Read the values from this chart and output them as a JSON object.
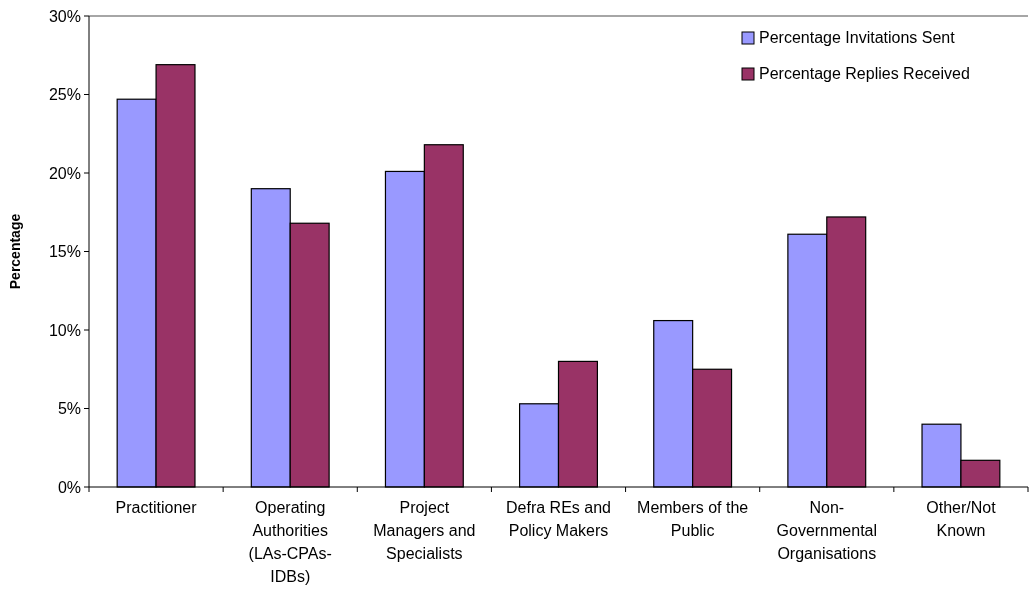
{
  "chart_data": {
    "type": "bar",
    "ylabel": "Percentage",
    "categories": [
      "Practitioner",
      "Operating Authorities (LAs-CPAs-IDBs)",
      "Project Managers and Specialists",
      "Defra REs and Policy Makers",
      "Members of the Public",
      "Non-Governmental Organisations",
      "Other/Not Known"
    ],
    "series": [
      {
        "name": "Percentage Invitations Sent",
        "color": "#9999ff",
        "values": [
          24.7,
          19.0,
          20.1,
          5.3,
          10.6,
          16.1,
          4.0
        ]
      },
      {
        "name": "Percentage Replies Received",
        "color": "#993366",
        "values": [
          26.9,
          16.8,
          21.8,
          8.0,
          7.5,
          17.2,
          1.7
        ]
      }
    ],
    "ylim": [
      0,
      30
    ],
    "yticks": [
      {
        "value": 0,
        "label": "0%"
      },
      {
        "value": 5,
        "label": "5%"
      },
      {
        "value": 10,
        "label": "10%"
      },
      {
        "value": 15,
        "label": "15%"
      },
      {
        "value": 20,
        "label": "20%"
      },
      {
        "value": 25,
        "label": "25%"
      },
      {
        "value": 30,
        "label": "30%"
      }
    ],
    "legend": "top right",
    "grid": false
  }
}
